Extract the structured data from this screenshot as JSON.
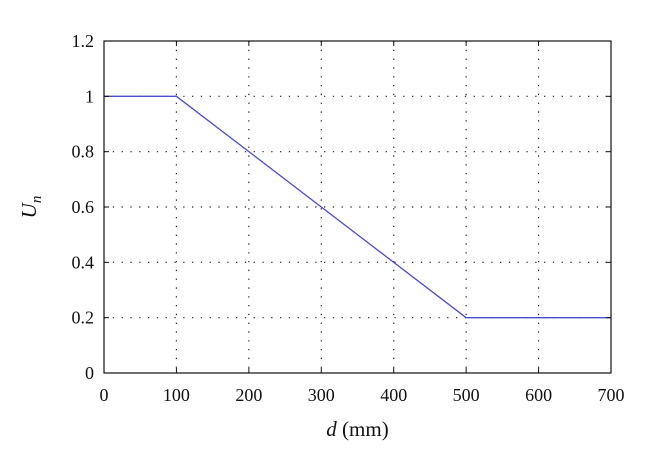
{
  "chart_data": {
    "type": "line",
    "xlabel": "d (mm)",
    "xlabel_italic": "d",
    "xlabel_rest": " (mm)",
    "ylabel": "Un",
    "ylabel_main": "U",
    "ylabel_sub": "n",
    "xlim": [
      0,
      700
    ],
    "ylim": [
      0,
      1.2
    ],
    "x_ticks": [
      0,
      100,
      200,
      300,
      400,
      500,
      600,
      700
    ],
    "y_ticks": [
      0,
      0.2,
      0.4,
      0.6,
      0.8,
      1,
      1.2
    ],
    "x_tick_labels": [
      "0",
      "100",
      "200",
      "300",
      "400",
      "500",
      "600",
      "700"
    ],
    "y_tick_labels": [
      "0",
      "0.2",
      "0.4",
      "0.6",
      "0.8",
      "1",
      "1.2"
    ],
    "grid": true,
    "grid_style": "dotted",
    "series": [
      {
        "x": [
          0,
          100,
          500,
          700
        ],
        "y": [
          1,
          1,
          0.2,
          0.2
        ],
        "color": "#4b4bd0"
      }
    ]
  }
}
